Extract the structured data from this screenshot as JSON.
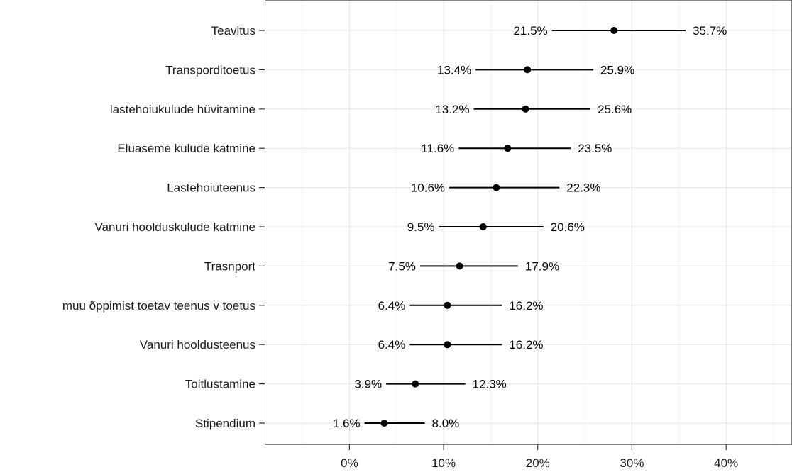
{
  "chart_data": {
    "type": "dot-interval",
    "title": "",
    "xlabel": "",
    "ylabel": "",
    "xlim": [
      -9,
      47
    ],
    "x_ticks": [
      0,
      10,
      20,
      30,
      40
    ],
    "x_tick_labels": [
      "0%",
      "10%",
      "20%",
      "30%",
      "40%"
    ],
    "grid": true,
    "items": [
      {
        "category": "Teavitus",
        "low": 21.5,
        "estimate": 28.1,
        "high": 35.7,
        "low_label": "21.5%",
        "high_label": "35.7%"
      },
      {
        "category": "Transporditoetus",
        "low": 13.4,
        "estimate": 18.9,
        "high": 25.9,
        "low_label": "13.4%",
        "high_label": "25.9%"
      },
      {
        "category": "lastehoiukulude hüvitamine",
        "low": 13.2,
        "estimate": 18.7,
        "high": 25.6,
        "low_label": "13.2%",
        "high_label": "25.6%"
      },
      {
        "category": "Eluaseme kulude katmine",
        "low": 11.6,
        "estimate": 16.8,
        "high": 23.5,
        "low_label": "11.6%",
        "high_label": "23.5%"
      },
      {
        "category": "Lastehoiuteenus",
        "low": 10.6,
        "estimate": 15.6,
        "high": 22.3,
        "low_label": "10.6%",
        "high_label": "22.3%"
      },
      {
        "category": "Vanuri hoolduskulude katmine",
        "low": 9.5,
        "estimate": 14.2,
        "high": 20.6,
        "low_label": "9.5%",
        "high_label": "20.6%"
      },
      {
        "category": "Trasnport",
        "low": 7.5,
        "estimate": 11.7,
        "high": 17.9,
        "low_label": "7.5%",
        "high_label": "17.9%"
      },
      {
        "category": "muu õppimist toetav teenus v toetus",
        "low": 6.4,
        "estimate": 10.4,
        "high": 16.2,
        "low_label": "6.4%",
        "high_label": "16.2%"
      },
      {
        "category": "Vanuri hooldusteenus",
        "low": 6.4,
        "estimate": 10.4,
        "high": 16.2,
        "low_label": "6.4%",
        "high_label": "16.2%"
      },
      {
        "category": "Toitlustamine",
        "low": 3.9,
        "estimate": 7.0,
        "high": 12.3,
        "low_label": "3.9%",
        "high_label": "12.3%"
      },
      {
        "category": "Stipendium",
        "low": 1.6,
        "estimate": 3.7,
        "high": 8.0,
        "low_label": "1.6%",
        "high_label": "8.0%"
      }
    ]
  }
}
